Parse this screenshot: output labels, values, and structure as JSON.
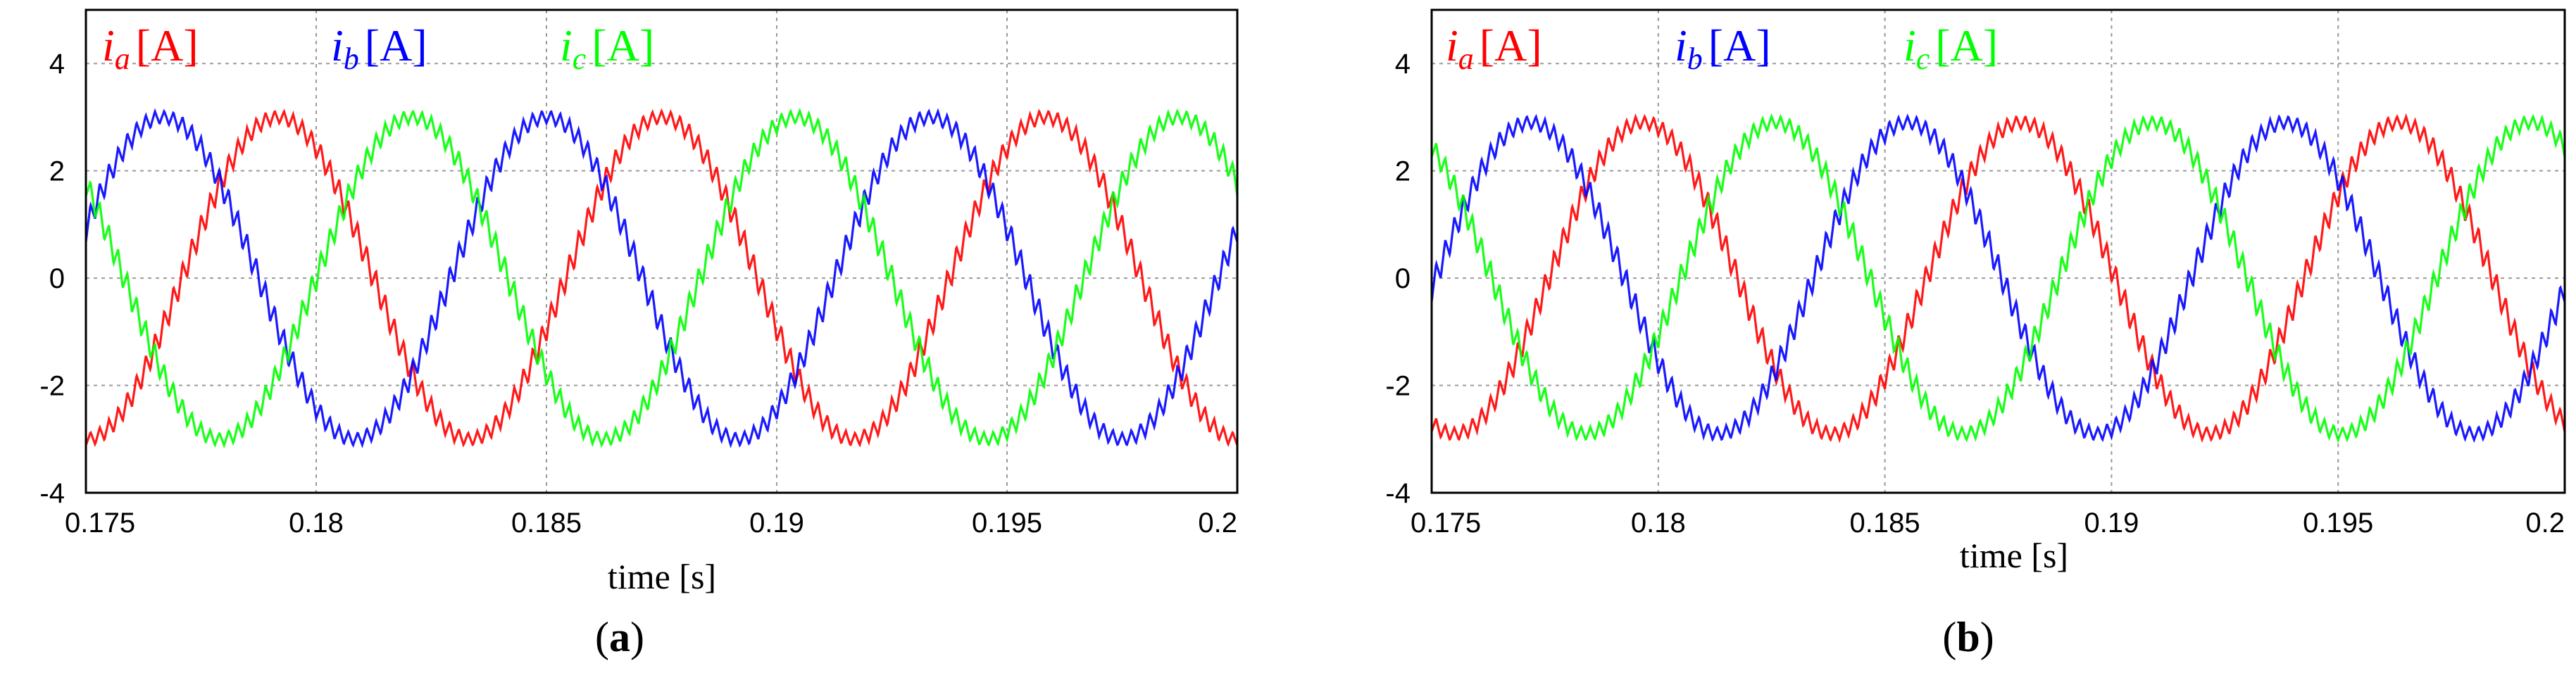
{
  "chart_data": [
    {
      "type": "line",
      "caption_letter": "a",
      "xlabel": "time [s]",
      "ylabel": "",
      "xlim": [
        0.175,
        0.2
      ],
      "ylim": [
        -4,
        5
      ],
      "x_ticks": [
        0.175,
        0.18,
        0.185,
        0.19,
        0.195,
        0.2
      ],
      "x_tick_labels": [
        "0.175",
        "0.18",
        "0.185",
        "0.19",
        "0.195",
        "0.2"
      ],
      "y_ticks": [
        -4,
        -2,
        0,
        2,
        4
      ],
      "y_tick_labels": [
        "-4",
        "-2",
        "0",
        "2",
        "4"
      ],
      "grid": true,
      "series": [
        {
          "symbol": "i",
          "sub": "a",
          "unit": "[A]",
          "color": "#ff0000",
          "amplitude": 3.0,
          "frequency_hz": 120,
          "peak_time_s": 0.1875,
          "ripple_amplitude": 0.25,
          "ripple_frequency_hz": 5000
        },
        {
          "symbol": "i",
          "sub": "b",
          "unit": "[A]",
          "color": "#0000ff",
          "amplitude": 3.0,
          "frequency_hz": 120,
          "peak_time_s": 0.17667,
          "ripple_amplitude": 0.25,
          "ripple_frequency_hz": 5000
        },
        {
          "symbol": "i",
          "sub": "c",
          "unit": "[A]",
          "color": "#00ff00",
          "amplitude": 3.0,
          "frequency_hz": 120,
          "peak_time_s": 0.18208,
          "ripple_amplitude": 0.25,
          "ripple_frequency_hz": 5000
        }
      ]
    },
    {
      "type": "line",
      "caption_letter": "b",
      "xlabel": "time [s]",
      "ylabel": "",
      "xlim": [
        0.175,
        0.2
      ],
      "ylim": [
        -4,
        5
      ],
      "x_ticks": [
        0.175,
        0.18,
        0.185,
        0.19,
        0.195,
        0.2
      ],
      "x_tick_labels": [
        "0.175",
        "0.18",
        "0.185",
        "0.19",
        "0.195",
        "0.2"
      ],
      "y_ticks": [
        -4,
        -2,
        0,
        2,
        4
      ],
      "y_tick_labels": [
        "-4",
        "-2",
        "0",
        "2",
        "4"
      ],
      "grid": true,
      "series": [
        {
          "symbol": "i",
          "sub": "a",
          "unit": "[A]",
          "color": "#ff0000",
          "amplitude": 2.9,
          "frequency_hz": 120,
          "peak_time_s": 0.188,
          "ripple_amplitude": 0.25,
          "ripple_frequency_hz": 5000
        },
        {
          "symbol": "i",
          "sub": "b",
          "unit": "[A]",
          "color": "#0000ff",
          "amplitude": 2.9,
          "frequency_hz": 120,
          "peak_time_s": 0.17717,
          "ripple_amplitude": 0.25,
          "ripple_frequency_hz": 5000
        },
        {
          "symbol": "i",
          "sub": "c",
          "unit": "[A]",
          "color": "#00ff00",
          "amplitude": 2.9,
          "frequency_hz": 120,
          "peak_time_s": 0.18258,
          "ripple_amplitude": 0.25,
          "ripple_frequency_hz": 5000
        }
      ]
    }
  ]
}
